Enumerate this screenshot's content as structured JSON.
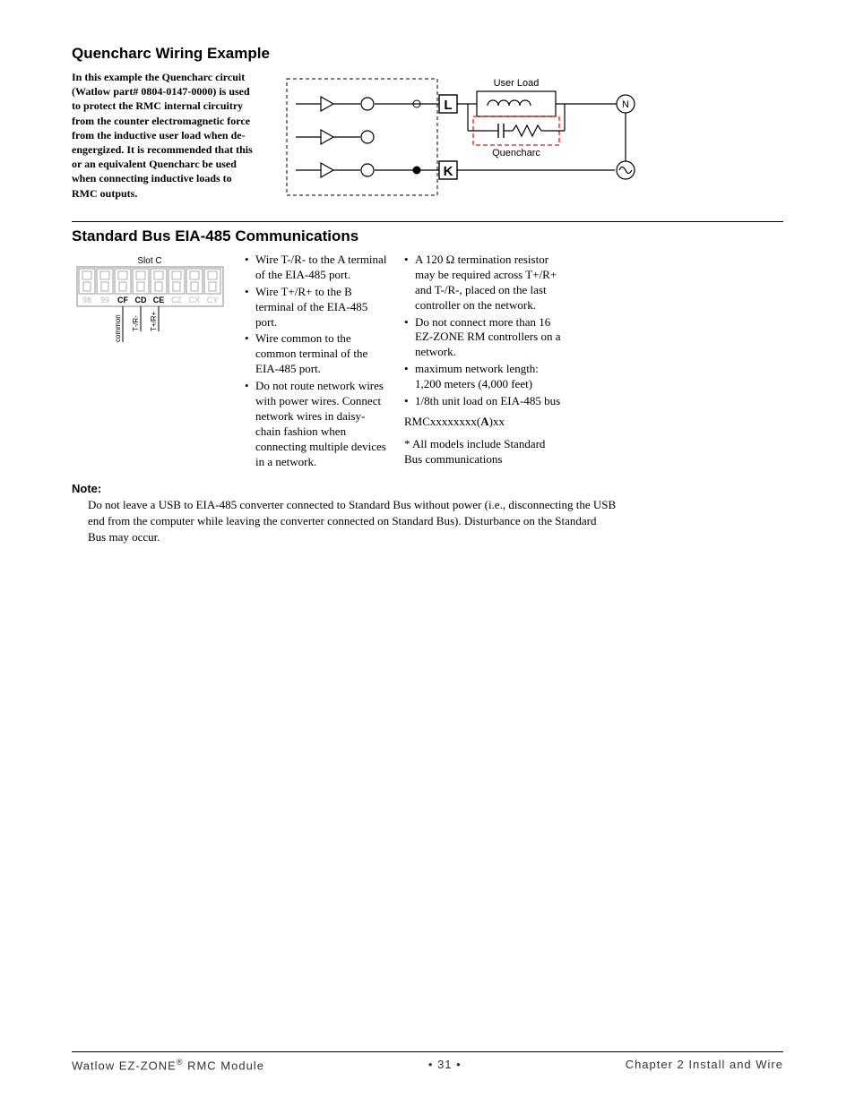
{
  "section1": {
    "title": "Quencharc Wiring Example",
    "body": "In this example the Quencharc circuit (Watlow part# 0804-0147-0000) is used to protect the RMC internal circuitry from the counter electromagnetic force from the inductive user load when de-engergized. It is recommended that this or an equivalent Quencharc be used when connecting inductive loads to RMC outputs.",
    "diagram": {
      "user_load_label": "User Load",
      "quencharc_label": "Quencharc",
      "L": "L",
      "K": "K",
      "N": "N",
      "colors": {
        "dashed": "#000000",
        "quencharc_box": "#e01b1b",
        "stroke": "#000000",
        "fill": "#ffffff"
      }
    }
  },
  "section2": {
    "title": "Standard Bus EIA-485 Communications",
    "slot_label": "Slot C",
    "terminal_labels": [
      "98",
      "99",
      "CF",
      "CD",
      "CE",
      "CZ",
      "CX",
      "CY"
    ],
    "active_terminals": [
      2,
      3,
      4
    ],
    "pin_labels": [
      "common",
      "T-/R-",
      "T+/R+"
    ],
    "col1_bullets": [
      "Wire T-/R- to the A terminal of the EIA-485 port.",
      "Wire T+/R+ to the B terminal of the EIA-485 port.",
      "Wire common to the common terminal of the EIA-485 port.",
      "Do not route network wires with power wires. Connect network wires in daisy-chain fashion when connecting multiple devices in a network."
    ],
    "col2_bullets": [
      "A 120 Ω termination resistor may be required across T+/R+ and T-/R-, placed on the last controller on the network.",
      "Do not connect more than 16 EZ-ZONE RM controllers on a network.",
      "maximum network length: 1,200 meters (4,000 feet)",
      "1/8th unit load on EIA-485 bus"
    ],
    "model_prefix": "RMCxxxxxxxx(",
    "model_bold": "A",
    "model_suffix": ")xx",
    "footnote": "* All models include Standard Bus communications"
  },
  "note": {
    "heading": "Note:",
    "body": "Do not leave a USB to EIA-485 converter connected to Standard Bus without power (i.e., disconnecting the USB end from the computer while leaving the converter connected on Standard Bus). Disturbance on the Standard Bus may occur."
  },
  "footer": {
    "left_a": "Watlow EZ-ZONE",
    "left_b": " RMC Module",
    "center": "•  31  •",
    "right": "Chapter 2 Install and Wire"
  },
  "style": {
    "page_bg": "#ffffff",
    "text_color": "#000000",
    "title_font": "Arial",
    "body_font": "Georgia",
    "title_size_pt": 17,
    "body_size_pt": 13
  }
}
